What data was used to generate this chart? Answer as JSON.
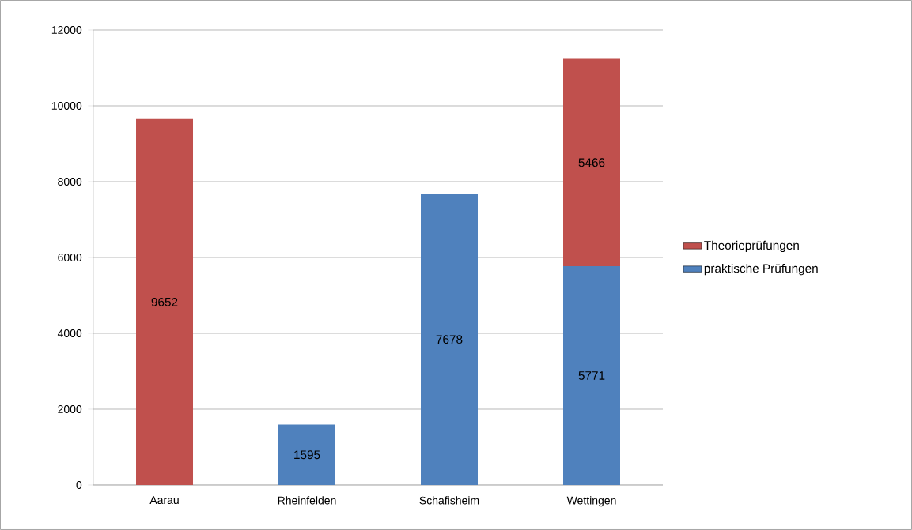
{
  "chart_data": {
    "type": "bar",
    "stacked": true,
    "categories": [
      "Aarau",
      "Rheinfelden",
      "Schafisheim",
      "Wettingen"
    ],
    "series": [
      {
        "name": "praktische Prüfungen",
        "color": "#4f81bd",
        "values": [
          null,
          1595,
          7678,
          5771
        ]
      },
      {
        "name": "Theorieprüfungen",
        "color": "#c0504d",
        "values": [
          9652,
          null,
          null,
          5466
        ]
      }
    ],
    "ylim": [
      0,
      12000
    ],
    "yticks": [
      0,
      2000,
      4000,
      6000,
      8000,
      10000,
      12000
    ],
    "grid": "y",
    "legend": "right",
    "data_labels": true
  }
}
